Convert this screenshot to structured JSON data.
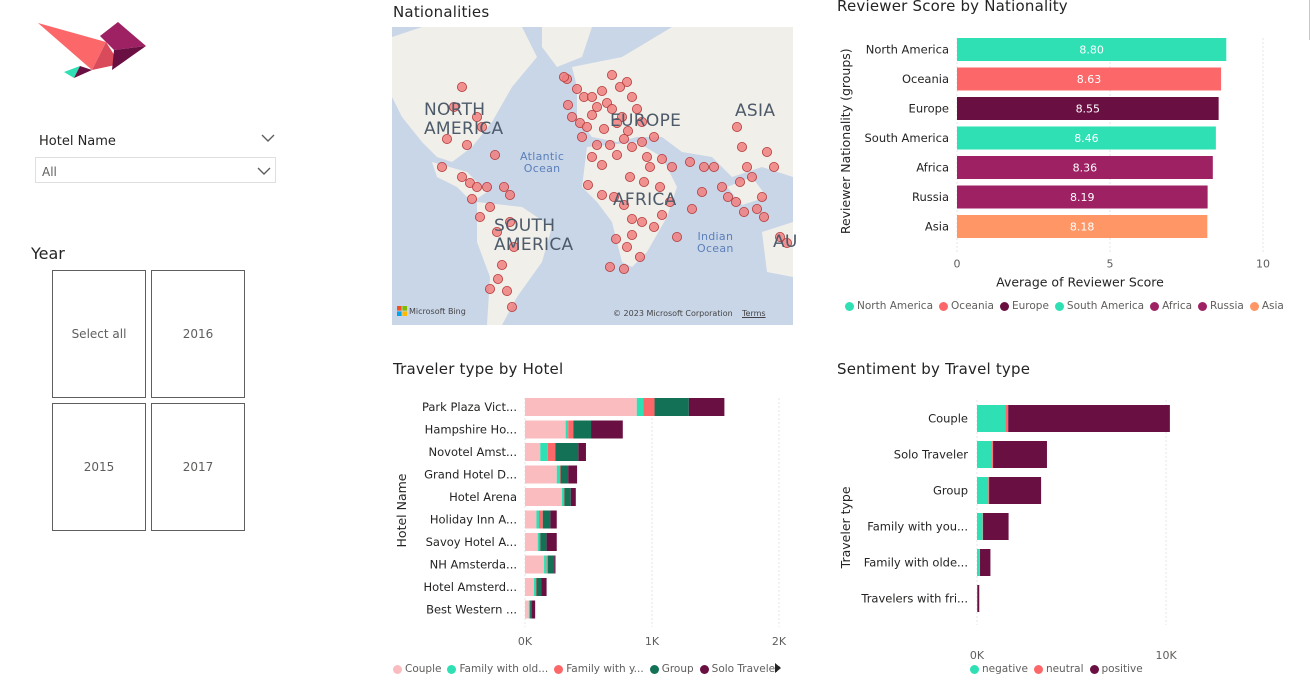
{
  "slicers": {
    "hotel_name": {
      "label": "Hotel Name",
      "value": "All"
    },
    "year": {
      "label": "Year",
      "tiles": [
        "Select all",
        "2016",
        "2015",
        "2017"
      ]
    }
  },
  "map": {
    "title": "Nationalities",
    "labels": {
      "north_america": "NORTH\nAMERICA",
      "south_america": "SOUTH\nAMERICA",
      "europe": "EUROPE",
      "africa": "AFRICA",
      "asia": "ASIA",
      "aus": "AU",
      "atlantic": "Atlantic\nOcean",
      "indian": "Indian\nOcean"
    },
    "attribution_left": "Microsoft Bing",
    "attribution_right": "© 2023 Microsoft Corporation",
    "terms": "Terms",
    "colors": {
      "water": "#c9d6e8",
      "land": "#f1efe9",
      "dot": "#f07f7f",
      "dot_stroke": "#b23a3a"
    }
  },
  "colors": {
    "north_america": "#2ee0b3",
    "oceania": "#fc6869",
    "europe": "#6a0f42",
    "south_america": "#2ee0b3",
    "africa": "#9e2164",
    "russia": "#9e2164",
    "asia": "#fe9666",
    "couple": "#fbbcbf",
    "family_older": "#2ee0b3",
    "family_young": "#fc6869",
    "group": "#137156",
    "solo": "#6a0f42",
    "negative": "#2ee0b3",
    "neutral": "#fc6869",
    "positive": "#6a0f42"
  },
  "chart_data": [
    {
      "type": "bar",
      "title": "Reviewer Score by Nationality",
      "ylabel": "Reviewer Nationality (groups)",
      "xlabel": "Average of Reviewer Score",
      "categories": [
        "North America",
        "Oceania",
        "Europe",
        "South America",
        "Africa",
        "Russia",
        "Asia"
      ],
      "values": [
        8.8,
        8.63,
        8.55,
        8.46,
        8.36,
        8.19,
        8.18
      ],
      "value_labels": [
        "8.80",
        "8.63",
        "8.55",
        "8.46",
        "8.36",
        "8.19",
        "8.18"
      ],
      "xlim": [
        0,
        10
      ],
      "xticks": [
        "0",
        "5",
        "10"
      ],
      "legend": [
        "North America",
        "Oceania",
        "Europe",
        "South America",
        "Africa",
        "Russia",
        "Asia"
      ],
      "legend_position": "bottom",
      "grid": true
    },
    {
      "type": "bar",
      "title": "Traveler type by Hotel",
      "ylabel": "Hotel Name",
      "xlabel": "",
      "stacked": true,
      "categories": [
        "Park Plaza Vict...",
        "Hampshire Ho...",
        "Novotel Amst...",
        "Grand Hotel D...",
        "Hotel Arena",
        "Holiday Inn A...",
        "Savoy Hotel A...",
        "NH Amsterda...",
        "Hotel Amsterd...",
        "Best Western ..."
      ],
      "series": [
        {
          "name": "Couple",
          "values": [
            880,
            320,
            120,
            250,
            290,
            90,
            100,
            150,
            70,
            30
          ]
        },
        {
          "name": "Family with old...",
          "values": [
            50,
            20,
            60,
            20,
            10,
            20,
            10,
            20,
            10,
            5
          ]
        },
        {
          "name": "Family with y...",
          "values": [
            90,
            40,
            60,
            10,
            10,
            30,
            10,
            10,
            10,
            5
          ]
        },
        {
          "name": "Group",
          "values": [
            270,
            140,
            180,
            60,
            50,
            60,
            50,
            50,
            40,
            15
          ]
        },
        {
          "name": "Solo Traveler",
          "values": [
            280,
            250,
            60,
            70,
            40,
            50,
            80,
            10,
            40,
            25
          ]
        }
      ],
      "xlim": [
        0,
        2000
      ],
      "xticks": [
        "0K",
        "1K",
        "2K"
      ],
      "legend": [
        "Couple",
        "Family with old...",
        "Family with y...",
        "Group",
        "Solo Traveler"
      ],
      "legend_position": "bottom",
      "grid": true
    },
    {
      "type": "bar",
      "title": "Sentiment by Travel type",
      "ylabel": "Traveler type",
      "xlabel": "",
      "stacked": true,
      "categories": [
        "Couple",
        "Solo Traveler",
        "Group",
        "Family with you...",
        "Family with olde...",
        "Travelers with fri..."
      ],
      "series": [
        {
          "name": "negative",
          "values": [
            1500,
            800,
            600,
            300,
            150,
            20
          ]
        },
        {
          "name": "neutral",
          "values": [
            150,
            50,
            40,
            20,
            10,
            5
          ]
        },
        {
          "name": "positive",
          "values": [
            8550,
            2850,
            2750,
            1350,
            550,
            95
          ]
        }
      ],
      "xlim": [
        0,
        11000
      ],
      "xticks": [
        "0K",
        "10K"
      ],
      "legend": [
        "negative",
        "neutral",
        "positive"
      ],
      "legend_position": "bottom",
      "grid": true
    }
  ]
}
